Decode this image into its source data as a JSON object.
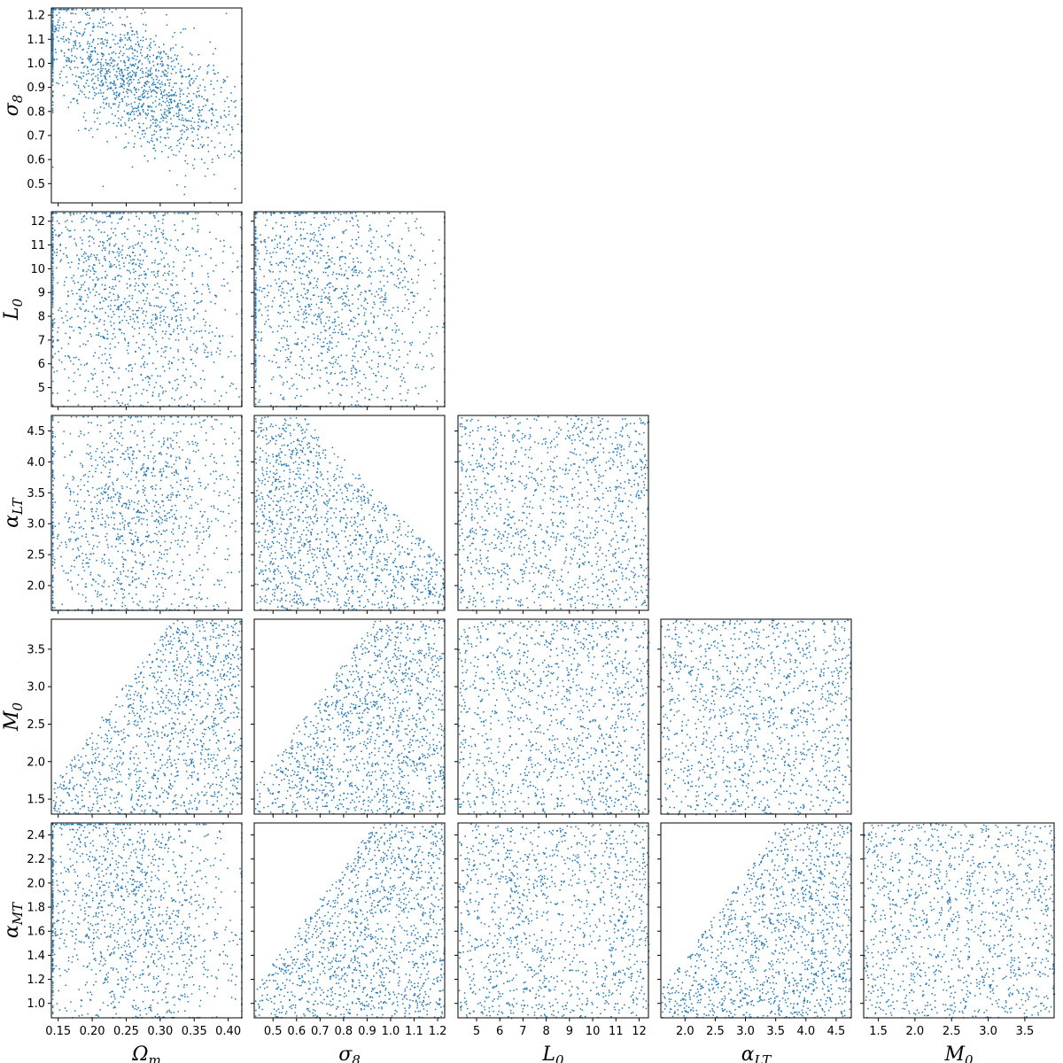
{
  "chart_data": {
    "type": "scatter",
    "kind": "corner-plot",
    "marker_color": "#1f77b4",
    "grid": false,
    "parameters": [
      {
        "key": "omega_m",
        "label_base": "Ω",
        "label_sub": "m",
        "range": [
          0.14,
          0.42
        ],
        "ticks": [
          0.15,
          0.2,
          0.25,
          0.3,
          0.35,
          0.4
        ],
        "tick_labels": [
          "0.15",
          "0.20",
          "0.25",
          "0.30",
          "0.35",
          "0.40"
        ]
      },
      {
        "key": "sigma_8",
        "label_base": "σ",
        "label_sub": "8",
        "range": [
          0.42,
          1.23
        ],
        "ticks": [
          0.5,
          0.6,
          0.7,
          0.8,
          0.9,
          1.0,
          1.1,
          1.2
        ],
        "tick_labels": [
          "0.5",
          "0.6",
          "0.7",
          "0.8",
          "0.9",
          "1.0",
          "1.1",
          "1.2"
        ]
      },
      {
        "key": "L_0",
        "label_base": "L",
        "label_sub": "0",
        "range": [
          4.2,
          12.4
        ],
        "ticks": [
          5,
          6,
          7,
          8,
          9,
          10,
          11,
          12
        ],
        "tick_labels": [
          "5",
          "6",
          "7",
          "8",
          "9",
          "10",
          "11",
          "12"
        ]
      },
      {
        "key": "alpha_LT",
        "label_base": "α",
        "label_sub": "LT",
        "range": [
          1.6,
          4.75
        ],
        "ticks": [
          2.0,
          2.5,
          3.0,
          3.5,
          4.0,
          4.5
        ],
        "tick_labels": [
          "2.0",
          "2.5",
          "3.0",
          "3.5",
          "4.0",
          "4.5"
        ]
      },
      {
        "key": "M_0",
        "label_base": "M",
        "label_sub": "0",
        "range": [
          1.3,
          3.9
        ],
        "ticks": [
          1.5,
          2.0,
          2.5,
          3.0,
          3.5
        ],
        "tick_labels": [
          "1.5",
          "2.0",
          "2.5",
          "3.0",
          "3.5"
        ]
      },
      {
        "key": "alpha_MT",
        "label_base": "α",
        "label_sub": "MT",
        "range": [
          0.88,
          2.5
        ],
        "ticks": [
          1.0,
          1.2,
          1.4,
          1.6,
          1.8,
          2.0,
          2.2,
          2.4
        ],
        "tick_labels": [
          "1.0",
          "1.2",
          "1.4",
          "1.6",
          "1.8",
          "2.0",
          "2.2",
          "2.4"
        ]
      }
    ],
    "panels": [
      {
        "x": "omega_m",
        "y": "sigma_8",
        "pattern": "banana",
        "trend": "negative",
        "points": 1500
      },
      {
        "x": "omega_m",
        "y": "L_0",
        "pattern": "weak",
        "trend": "negative",
        "points": 1300
      },
      {
        "x": "sigma_8",
        "y": "L_0",
        "pattern": "weak",
        "trend": "negative",
        "points": 1300
      },
      {
        "x": "omega_m",
        "y": "alpha_LT",
        "pattern": "weak",
        "trend": "positive",
        "points": 1300
      },
      {
        "x": "sigma_8",
        "y": "alpha_LT",
        "pattern": "wedge",
        "trend": "negative",
        "points": 1400
      },
      {
        "x": "L_0",
        "y": "alpha_LT",
        "pattern": "uniform",
        "trend": "none",
        "points": 1300
      },
      {
        "x": "omega_m",
        "y": "M_0",
        "pattern": "wedge",
        "trend": "positive",
        "points": 1300
      },
      {
        "x": "sigma_8",
        "y": "M_0",
        "pattern": "wedge",
        "trend": "positive",
        "points": 1400
      },
      {
        "x": "L_0",
        "y": "M_0",
        "pattern": "uniform",
        "trend": "none",
        "points": 1300
      },
      {
        "x": "alpha_LT",
        "y": "M_0",
        "pattern": "uniform",
        "trend": "none",
        "points": 1300
      },
      {
        "x": "omega_m",
        "y": "alpha_MT",
        "pattern": "weak",
        "trend": "negative",
        "points": 1400
      },
      {
        "x": "sigma_8",
        "y": "alpha_MT",
        "pattern": "wedge",
        "trend": "positive",
        "points": 1400
      },
      {
        "x": "L_0",
        "y": "alpha_MT",
        "pattern": "uniform",
        "trend": "none",
        "points": 1300
      },
      {
        "x": "alpha_LT",
        "y": "alpha_MT",
        "pattern": "wedge",
        "trend": "positive",
        "points": 1400
      },
      {
        "x": "M_0",
        "y": "alpha_MT",
        "pattern": "uniform",
        "trend": "none",
        "points": 1300
      }
    ]
  }
}
